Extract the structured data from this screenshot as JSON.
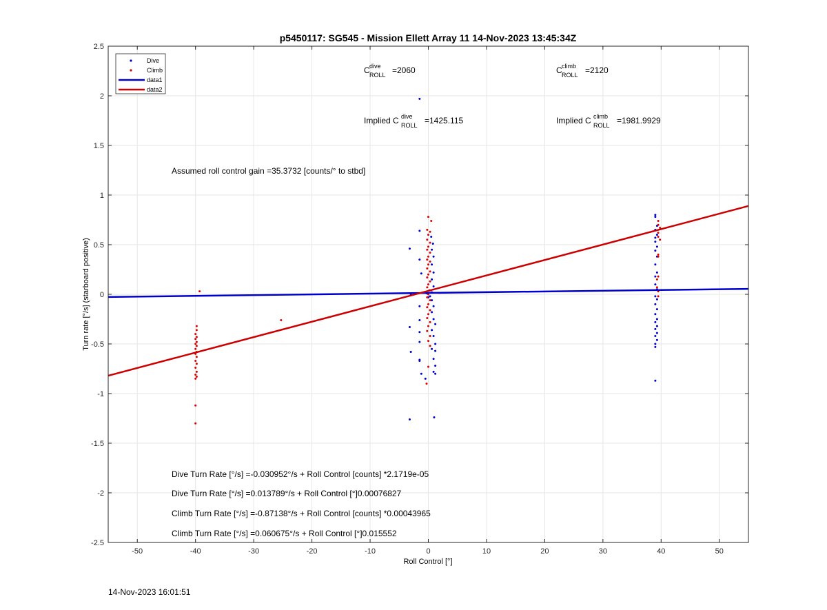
{
  "chart_data": {
    "type": "scatter",
    "title": "p5450117: SG545 - Mission Ellett Array 11 14-Nov-2023 13:45:34Z",
    "xlabel": "Roll Control [°]",
    "ylabel": "Turn rate [°/s] (starboard positive)",
    "xlim": [
      -55,
      55
    ],
    "ylim": [
      -2.5,
      2.5
    ],
    "x_ticks": [
      -50,
      -40,
      -30,
      -20,
      -10,
      0,
      10,
      20,
      30,
      40,
      50
    ],
    "y_ticks": [
      -2.5,
      -2,
      -1.5,
      -1,
      -0.5,
      0,
      0.5,
      1,
      1.5,
      2,
      2.5
    ],
    "x_tick_labels": [
      "-50",
      "-40",
      "-30",
      "-20",
      "-10",
      "0",
      "10",
      "20",
      "30",
      "40",
      "50"
    ],
    "y_tick_labels": [
      "-2.5",
      "-2",
      "-1.5",
      "-1",
      "-0.5",
      "0",
      "0.5",
      "1",
      "1.5",
      "2",
      "2.5"
    ],
    "grid": true,
    "legend_position": "top-left",
    "series": [
      {
        "name": "Dive",
        "kind": "points",
        "color": "#0000cc",
        "points": [
          [
            -1.5,
            1.97
          ],
          [
            -3.2,
            0.46
          ],
          [
            -1.5,
            0.64
          ],
          [
            -1.5,
            0.35
          ],
          [
            -1.2,
            0.21
          ],
          [
            -3.0,
            0.0
          ],
          [
            -1.5,
            -0.12
          ],
          [
            -1.5,
            -0.26
          ],
          [
            -3.2,
            -0.33
          ],
          [
            -1.5,
            -0.38
          ],
          [
            -1.5,
            -0.48
          ],
          [
            -3.0,
            -0.58
          ],
          [
            -1.5,
            -0.66
          ],
          [
            -1.5,
            -0.67
          ],
          [
            -1.2,
            -0.8
          ],
          [
            -0.5,
            -0.85
          ],
          [
            -3.2,
            -1.26
          ],
          [
            1.0,
            -1.24
          ],
          [
            0.5,
            0.58
          ],
          [
            0.8,
            0.51
          ],
          [
            0.6,
            0.45
          ],
          [
            0.9,
            0.38
          ],
          [
            0.6,
            0.3
          ],
          [
            0.9,
            0.22
          ],
          [
            0.6,
            0.15
          ],
          [
            0.9,
            0.08
          ],
          [
            0.6,
            0.02
          ],
          [
            0.3,
            -0.02
          ],
          [
            0.6,
            -0.06
          ],
          [
            0.9,
            -0.12
          ],
          [
            0.6,
            -0.18
          ],
          [
            0.9,
            -0.25
          ],
          [
            1.2,
            -0.3
          ],
          [
            0.6,
            -0.36
          ],
          [
            0.9,
            -0.42
          ],
          [
            1.2,
            -0.5
          ],
          [
            0.6,
            -0.55
          ],
          [
            1.2,
            -0.57
          ],
          [
            0.9,
            -0.65
          ],
          [
            1.2,
            -0.72
          ],
          [
            0.9,
            -0.78
          ],
          [
            1.2,
            -0.8
          ],
          [
            0.0,
            -0.03
          ],
          [
            -0.3,
            0.01
          ],
          [
            0.2,
            0.04
          ],
          [
            39.0,
            0.8
          ],
          [
            39.0,
            0.78
          ],
          [
            39.3,
            0.69
          ],
          [
            39.0,
            0.65
          ],
          [
            39.3,
            0.6
          ],
          [
            39.0,
            0.57
          ],
          [
            39.0,
            0.53
          ],
          [
            39.3,
            0.48
          ],
          [
            39.0,
            0.44
          ],
          [
            39.3,
            0.38
          ],
          [
            39.0,
            0.3
          ],
          [
            39.3,
            0.22
          ],
          [
            39.0,
            0.18
          ],
          [
            39.0,
            0.1
          ],
          [
            39.3,
            0.05
          ],
          [
            39.0,
            -0.02
          ],
          [
            39.3,
            -0.05
          ],
          [
            39.0,
            -0.1
          ],
          [
            39.3,
            -0.15
          ],
          [
            39.0,
            -0.2
          ],
          [
            39.3,
            -0.25
          ],
          [
            39.0,
            -0.28
          ],
          [
            39.3,
            -0.32
          ],
          [
            39.0,
            -0.35
          ],
          [
            39.3,
            -0.39
          ],
          [
            39.0,
            -0.42
          ],
          [
            39.3,
            -0.46
          ],
          [
            39.0,
            -0.5
          ],
          [
            39.0,
            -0.53
          ],
          [
            39.0,
            -0.87
          ]
        ]
      },
      {
        "name": "Climb",
        "kind": "points",
        "color": "#dd0000",
        "points": [
          [
            -39.3,
            0.03
          ],
          [
            -39.8,
            -0.32
          ],
          [
            -39.8,
            -0.36
          ],
          [
            -40.0,
            -0.4
          ],
          [
            -39.8,
            -0.43
          ],
          [
            -40.0,
            -0.45
          ],
          [
            -39.8,
            -0.48
          ],
          [
            -40.0,
            -0.5
          ],
          [
            -39.8,
            -0.52
          ],
          [
            -40.0,
            -0.55
          ],
          [
            -39.8,
            -0.58
          ],
          [
            -40.0,
            -0.6
          ],
          [
            -39.8,
            -0.63
          ],
          [
            -40.0,
            -0.67
          ],
          [
            -39.8,
            -0.7
          ],
          [
            -40.0,
            -0.74
          ],
          [
            -39.8,
            -0.78
          ],
          [
            -40.0,
            -0.81
          ],
          [
            -39.8,
            -0.83
          ],
          [
            -40.0,
            -0.85
          ],
          [
            -40.0,
            -1.12
          ],
          [
            -40.0,
            -1.3
          ],
          [
            -25.3,
            -0.26
          ],
          [
            0.0,
            0.78
          ],
          [
            0.5,
            0.74
          ],
          [
            -0.2,
            0.65
          ],
          [
            0.3,
            0.63
          ],
          [
            0.0,
            0.6
          ],
          [
            -0.2,
            0.55
          ],
          [
            0.3,
            0.52
          ],
          [
            0.0,
            0.48
          ],
          [
            -0.2,
            0.45
          ],
          [
            0.3,
            0.42
          ],
          [
            0.0,
            0.38
          ],
          [
            -0.2,
            0.35
          ],
          [
            0.3,
            0.33
          ],
          [
            0.0,
            0.3
          ],
          [
            -0.2,
            0.26
          ],
          [
            0.3,
            0.23
          ],
          [
            0.0,
            0.2
          ],
          [
            -0.2,
            0.17
          ],
          [
            0.3,
            0.13
          ],
          [
            0.0,
            0.1
          ],
          [
            -0.2,
            0.07
          ],
          [
            0.3,
            0.04
          ],
          [
            0.0,
            0.0
          ],
          [
            -0.2,
            -0.03
          ],
          [
            0.3,
            -0.06
          ],
          [
            0.0,
            -0.1
          ],
          [
            -0.2,
            -0.13
          ],
          [
            0.3,
            -0.16
          ],
          [
            0.0,
            -0.2
          ],
          [
            -0.2,
            -0.24
          ],
          [
            0.3,
            -0.28
          ],
          [
            0.0,
            -0.32
          ],
          [
            -0.2,
            -0.37
          ],
          [
            0.3,
            -0.42
          ],
          [
            0.0,
            -0.47
          ],
          [
            0.3,
            -0.52
          ],
          [
            0.0,
            -0.73
          ],
          [
            -0.3,
            -0.9
          ],
          [
            39.5,
            0.74
          ],
          [
            39.5,
            0.7
          ],
          [
            39.8,
            0.67
          ],
          [
            39.5,
            0.62
          ],
          [
            39.5,
            0.58
          ],
          [
            39.8,
            0.55
          ],
          [
            39.5,
            0.4
          ],
          [
            39.5,
            0.38
          ],
          [
            39.5,
            0.18
          ],
          [
            39.3,
            0.15
          ],
          [
            39.3,
            0.07
          ],
          [
            39.5,
            0.03
          ],
          [
            39.5,
            -0.02
          ]
        ]
      },
      {
        "name": "data1",
        "kind": "line",
        "color": "#0000cc",
        "x": [
          -55,
          55
        ],
        "y": [
          -0.027,
          0.055
        ]
      },
      {
        "name": "data2",
        "kind": "line",
        "color": "#cc0000",
        "x": [
          -55,
          55
        ],
        "y": [
          -0.82,
          0.89
        ]
      }
    ],
    "annotations": {
      "c_roll_dive_base": "C",
      "c_roll_dive_sup": "dive",
      "c_roll_dive_sub": "ROLL",
      "c_roll_dive_value": "=2060",
      "c_roll_climb_base": "C",
      "c_roll_climb_sup": "climb",
      "c_roll_climb_sub": "ROLL",
      "c_roll_climb_value": "=2120",
      "implied_dive_prefix": "Implied C",
      "implied_dive_sup": "dive",
      "implied_dive_sub": "ROLL",
      "implied_dive_value": "=1425.115",
      "implied_climb_prefix": "Implied C",
      "implied_climb_sup": "climb",
      "implied_climb_sub": "ROLL",
      "implied_climb_value": "=1981.9929",
      "gain_text": "Assumed roll control gain =35.3732 [counts/° to stbd]",
      "equations": [
        "Dive Turn Rate [°/s] =-0.030952°/s + Roll Control [counts] *2.1719e-05",
        "Dive Turn Rate [°/s] =0.013789°/s + Roll Control [°]0.00076827",
        "Climb Turn Rate [°/s] =-0.87138°/s + Roll Control [counts] *0.00043965",
        "Climb Turn Rate [°/s] =0.060675°/s + Roll Control [°]0.015552"
      ]
    }
  },
  "footer": {
    "date": "14-Nov-2023 16:01:51"
  },
  "colors": {
    "dive": "#0000cc",
    "climb": "#dd0000",
    "fit_dive": "#0000cc",
    "fit_climb": "#cc0000",
    "grid": "#e6e6e6"
  }
}
